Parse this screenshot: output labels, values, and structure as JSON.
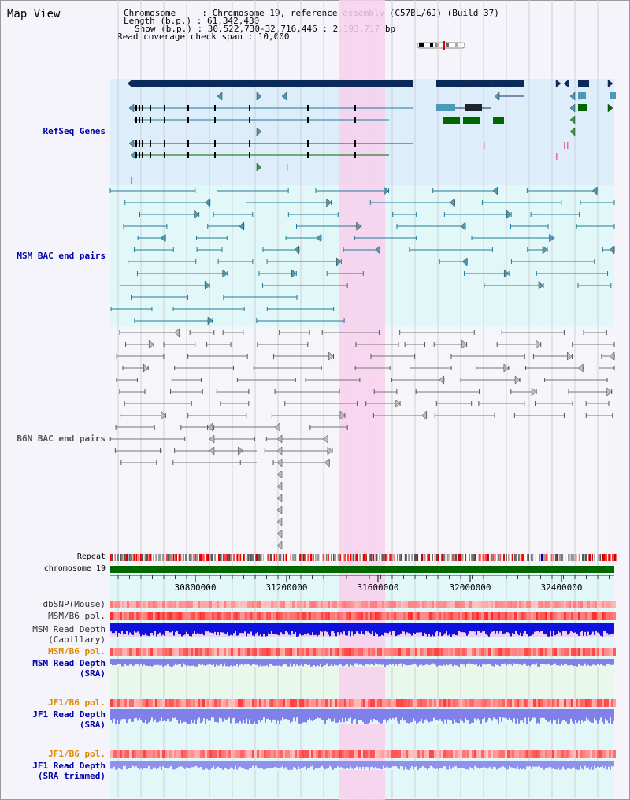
{
  "map": {
    "title": "Map View",
    "header": {
      "chromosome": "Chromosome     : Chromosome 19, reference assembly (C57BL/6J) (Build 37)",
      "length": "Length (b.p.) : 61,342,430",
      "show": "Show (b.p.) : 30,522,730-32,716,446 : 2,193,717 bp",
      "coverage": "Read coverage check span : 10,000"
    },
    "tracks": {
      "refseq": "RefSeq Genes",
      "msm_bac": "MSM BAC end pairs",
      "b6n_bac": "B6N BAC end pairs",
      "repeat": "Repeat",
      "chromosome": "chromosome 19",
      "dbsnp": "dbSNP(Mouse)",
      "msm_b6_pol": "MSM/B6 pol.",
      "msm_depth_cap_1": "MSM Read Depth",
      "msm_depth_cap_2": "(Capillary)",
      "msm_b6_pol2": "MSM/B6 pol.",
      "msm_depth_sra_1": "MSM Read Depth",
      "msm_depth_sra_2": "(SRA)",
      "jf1_pol": "JF1/B6 pol.",
      "jf1_depth_1": "JF1 Read Depth",
      "jf1_depth_2": "(SRA)",
      "jf1_pol_t": "JF1/B6 pol.",
      "jf1_depth_t1": "JF1 Read Depth",
      "jf1_depth_t2": "(SRA trimmed)"
    },
    "axis_ticks": [
      "30800000",
      "31200000",
      "31600000",
      "32000000",
      "32400000"
    ],
    "colors": {
      "refseq_bg": "#ddeefa",
      "msm_bg": "#e2f8f8",
      "b6n_bg": "#f1f1f7",
      "highlight": "#f8d0ec",
      "gene_navy": "#0a2a5a",
      "gene_teal": "#4a9ab8",
      "gene_green": "#006600",
      "msm_line": "#207a9a",
      "b6n_line": "#777777",
      "chromosome": "#006600",
      "label_blue": "#0000aa",
      "label_orange": "#e08a00"
    }
  }
}
